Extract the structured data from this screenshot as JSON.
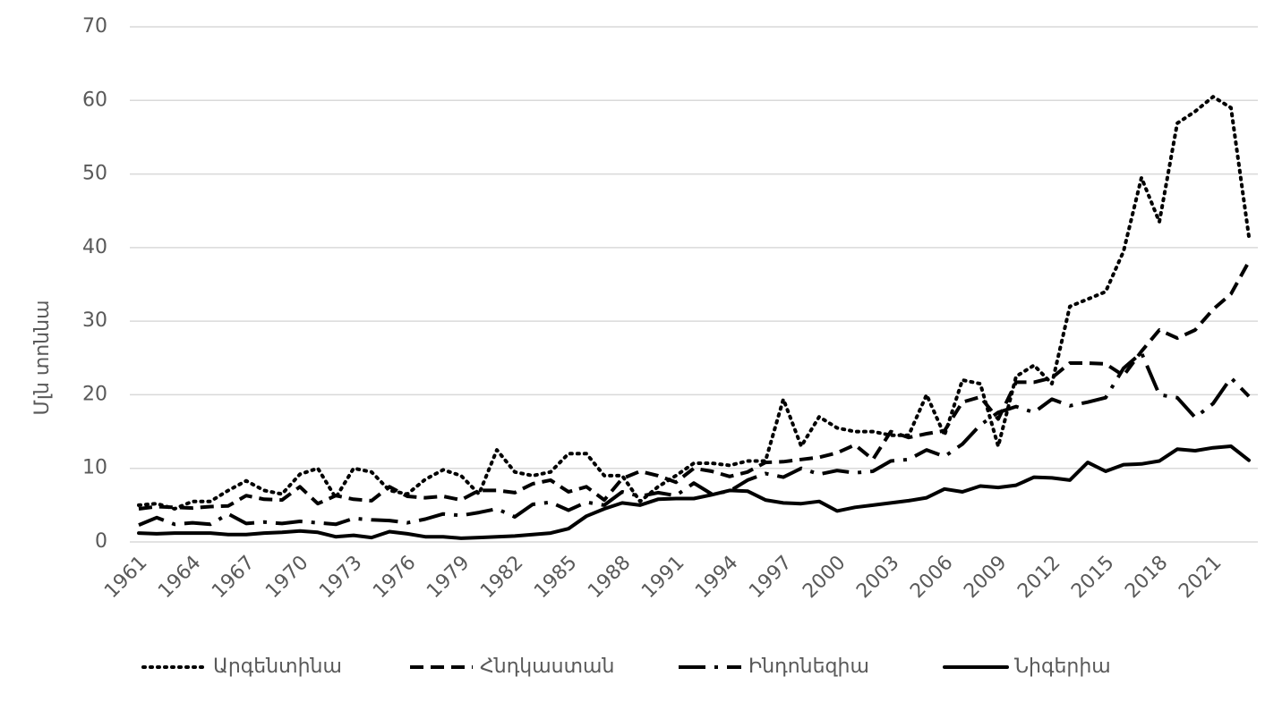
{
  "chart_data": {
    "type": "line",
    "y_label": "Մլն տոննա",
    "categories": [
      "1961",
      null,
      null,
      "1964",
      null,
      null,
      "1967",
      null,
      null,
      "1970",
      null,
      null,
      "1973",
      null,
      null,
      "1976",
      null,
      null,
      "1979",
      null,
      null,
      "1982",
      null,
      null,
      "1985",
      null,
      null,
      "1988",
      null,
      null,
      "1991",
      null,
      null,
      "1994",
      null,
      null,
      "1997",
      null,
      null,
      "2000",
      null,
      null,
      "2003",
      null,
      null,
      "2006",
      null,
      null,
      "2009",
      null,
      null,
      "2012",
      null,
      null,
      "2015",
      null,
      null,
      "2018",
      null,
      null,
      "2021",
      null,
      null
    ],
    "series": [
      {
        "name": "Արգենտինա",
        "color": "#000000",
        "dash": "dotted",
        "values": [
          5,
          5.2,
          4.5,
          5.5,
          5.5,
          7,
          8.3,
          7,
          6.5,
          9.2,
          10,
          6,
          10,
          9.5,
          7,
          6.5,
          8.5,
          9.8,
          9,
          6.5,
          12.5,
          9.5,
          9,
          9.5,
          12,
          12,
          9,
          9,
          5.5,
          7.5,
          9,
          10.7,
          10.7,
          10.4,
          11,
          11,
          19.4,
          13,
          17,
          15.5,
          15,
          15,
          14.5,
          14.5,
          20,
          14.5,
          22,
          21.5,
          13,
          22.5,
          24,
          21.5,
          32,
          33,
          34,
          39.5,
          49.5,
          43.5,
          56.9,
          58.5,
          60.5,
          59,
          41.5
        ]
      },
      {
        "name": "Հնդկաստան",
        "color": "#000000",
        "dash": "dashed",
        "values": [
          4.5,
          4.8,
          4.7,
          4.6,
          4.8,
          4.9,
          6.3,
          5.8,
          5.7,
          7.5,
          5.2,
          6.3,
          5.8,
          5.6,
          7.5,
          6.2,
          6,
          6.2,
          5.7,
          7,
          7,
          6.7,
          7.9,
          8.4,
          6.8,
          7.5,
          5.7,
          8.6,
          9.6,
          9,
          8.1,
          10,
          9.6,
          8.9,
          9.5,
          10.8,
          10.9,
          11.2,
          11.5,
          12.1,
          13.2,
          11.2,
          15,
          14.2,
          14.7,
          15.1,
          19,
          19.7,
          16.7,
          21.7,
          21.7,
          22.3,
          24.3,
          24.3,
          24.2,
          22.6,
          25.9,
          28.8,
          27.7,
          28.8,
          31.6,
          33.7,
          38.1
        ]
      },
      {
        "name": "Ինդոնեզիա",
        "color": "#000000",
        "dash": "dash-dot",
        "values": [
          2.3,
          3.3,
          2.4,
          2.6,
          2.4,
          3.8,
          2.5,
          2.7,
          2.5,
          2.8,
          2.6,
          2.4,
          3.2,
          3,
          2.9,
          2.6,
          3.1,
          3.8,
          3.6,
          4,
          4.5,
          3.4,
          5.1,
          5.4,
          4.3,
          5.4,
          5,
          6.8,
          6.2,
          6.7,
          6.3,
          8,
          6.5,
          6.9,
          8.4,
          9.3,
          8.8,
          10,
          9.2,
          9.7,
          9.4,
          9.6,
          11,
          11.2,
          12.5,
          11.6,
          13.3,
          15.9,
          17.6,
          18.4,
          17.6,
          19.4,
          18.5,
          19,
          19.6,
          23.6,
          25.7,
          20,
          19.6,
          16.9,
          18.8,
          22.3,
          19.8
        ]
      },
      {
        "name": "Նիգերիա",
        "color": "#000000",
        "dash": "solid",
        "values": [
          1.2,
          1.1,
          1.2,
          1.2,
          1.2,
          1,
          1,
          1.2,
          1.3,
          1.5,
          1.3,
          0.7,
          0.9,
          0.6,
          1.4,
          1.1,
          0.7,
          0.7,
          0.5,
          0.6,
          0.7,
          0.8,
          1,
          1.2,
          1.8,
          3.5,
          4.5,
          5.3,
          5,
          5.8,
          5.9,
          5.9,
          6.4,
          7,
          6.9,
          5.7,
          5.3,
          5.2,
          5.5,
          4.2,
          4.7,
          5,
          5.3,
          5.6,
          6,
          7.2,
          6.8,
          7.6,
          7.4,
          7.7,
          8.8,
          8.7,
          8.4,
          10.8,
          9.6,
          10.5,
          10.6,
          11,
          12.6,
          12.4,
          12.8,
          13,
          11.1
        ]
      }
    ],
    "ylim": [
      0,
      70
    ],
    "yticks": [
      0,
      10,
      20,
      30,
      40,
      50,
      60,
      70
    ],
    "grid": true,
    "legend": "bottom"
  }
}
